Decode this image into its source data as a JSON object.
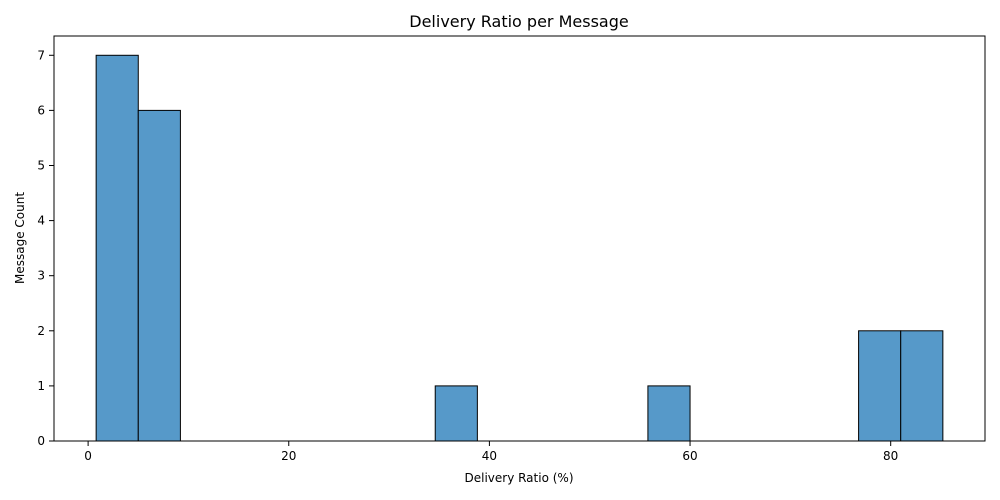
{
  "chart_data": {
    "type": "bar",
    "title": "Delivery Ratio per Message",
    "xlabel": "Delivery Ratio (%)",
    "ylabel": "Message Count",
    "bins": [
      {
        "start": 0.8,
        "end": 5.0,
        "count": 7
      },
      {
        "start": 5.0,
        "end": 9.2,
        "count": 6
      },
      {
        "start": 34.6,
        "end": 38.8,
        "count": 1
      },
      {
        "start": 55.8,
        "end": 60.0,
        "count": 1
      },
      {
        "start": 76.8,
        "end": 81.0,
        "count": 2
      },
      {
        "start": 81.0,
        "end": 85.2,
        "count": 2
      }
    ],
    "xlim": [
      -3.4,
      89.4
    ],
    "ylim": [
      0,
      7.35
    ],
    "xticks": [
      0,
      20,
      40,
      60,
      80
    ],
    "yticks": [
      0,
      1,
      2,
      3,
      4,
      5,
      6,
      7
    ],
    "grid": false,
    "bar_color": "#5699c9",
    "edge_color": "#000000"
  }
}
